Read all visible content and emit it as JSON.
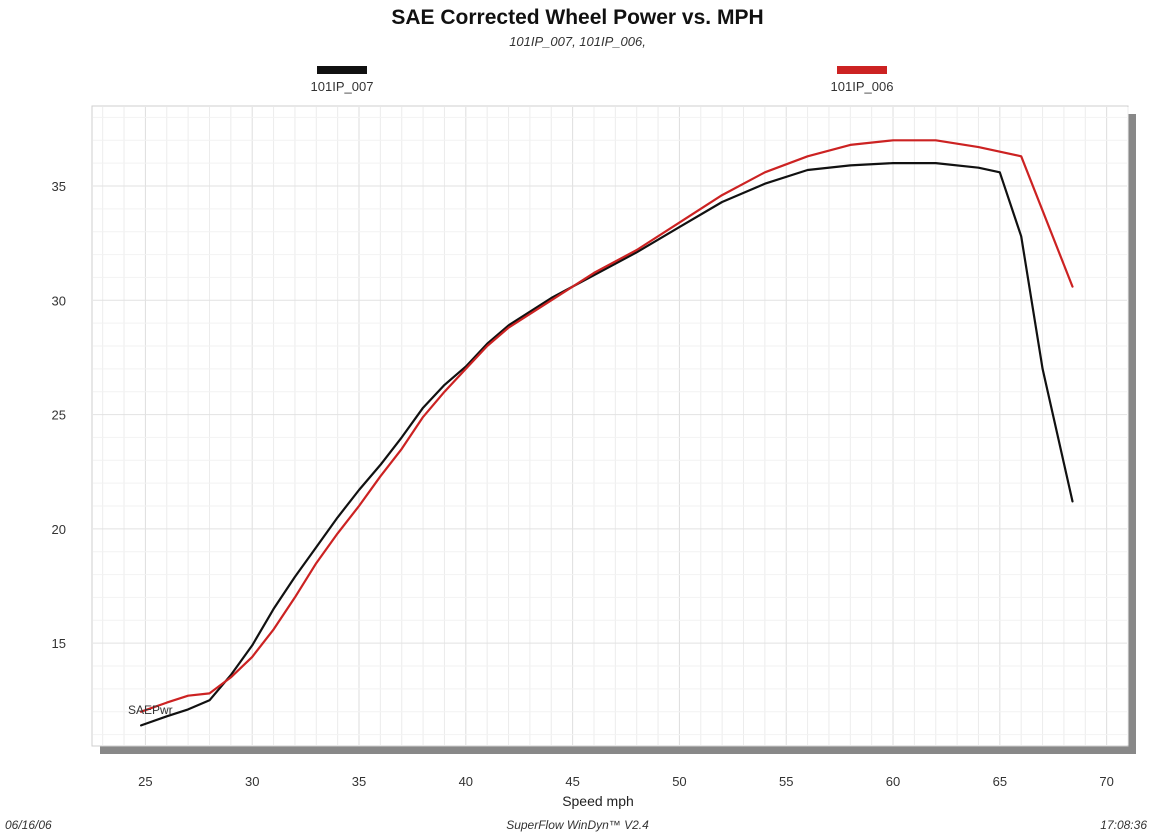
{
  "chart_data": {
    "type": "line",
    "title": "SAE Corrected Wheel Power vs. MPH",
    "subtitle": "101IP_007, 101IP_006,",
    "xlabel": "Speed   mph",
    "ylabel": "",
    "xlim": [
      22.5,
      71
    ],
    "ylim": [
      10.5,
      38.5
    ],
    "x_ticks": [
      25,
      30,
      35,
      40,
      45,
      50,
      55,
      60,
      65,
      70
    ],
    "y_ticks": [
      15,
      20,
      25,
      30,
      35
    ],
    "grid": true,
    "legend_position": "top",
    "series_axis_label": "SAEPwr",
    "series": [
      {
        "name": "101IP_007",
        "color": "#111111",
        "points": [
          [
            24.8,
            11.4
          ],
          [
            26,
            11.8
          ],
          [
            27,
            12.1
          ],
          [
            28,
            12.5
          ],
          [
            29,
            13.6
          ],
          [
            30,
            14.9
          ],
          [
            31,
            16.5
          ],
          [
            32,
            17.9
          ],
          [
            33,
            19.2
          ],
          [
            34,
            20.5
          ],
          [
            35,
            21.7
          ],
          [
            36,
            22.8
          ],
          [
            37,
            24.0
          ],
          [
            38,
            25.3
          ],
          [
            39,
            26.3
          ],
          [
            40,
            27.1
          ],
          [
            41,
            28.1
          ],
          [
            42,
            28.9
          ],
          [
            44,
            30.1
          ],
          [
            46,
            31.1
          ],
          [
            48,
            32.1
          ],
          [
            50,
            33.2
          ],
          [
            52,
            34.3
          ],
          [
            54,
            35.1
          ],
          [
            56,
            35.7
          ],
          [
            58,
            35.9
          ],
          [
            60,
            36.0
          ],
          [
            62,
            36.0
          ],
          [
            64,
            35.8
          ],
          [
            65,
            35.6
          ],
          [
            66,
            32.8
          ],
          [
            67,
            27.0
          ],
          [
            68.4,
            21.2
          ]
        ]
      },
      {
        "name": "101IP_006",
        "color": "#cc2222",
        "points": [
          [
            24.8,
            12.0
          ],
          [
            26,
            12.4
          ],
          [
            27,
            12.7
          ],
          [
            28,
            12.8
          ],
          [
            29,
            13.5
          ],
          [
            30,
            14.4
          ],
          [
            31,
            15.6
          ],
          [
            32,
            17.0
          ],
          [
            33,
            18.5
          ],
          [
            34,
            19.8
          ],
          [
            35,
            21.0
          ],
          [
            36,
            22.3
          ],
          [
            37,
            23.5
          ],
          [
            38,
            24.9
          ],
          [
            39,
            26.0
          ],
          [
            40,
            27.0
          ],
          [
            41,
            28.0
          ],
          [
            42,
            28.8
          ],
          [
            44,
            30.0
          ],
          [
            46,
            31.2
          ],
          [
            48,
            32.2
          ],
          [
            50,
            33.4
          ],
          [
            52,
            34.6
          ],
          [
            54,
            35.6
          ],
          [
            56,
            36.3
          ],
          [
            58,
            36.8
          ],
          [
            60,
            37.0
          ],
          [
            62,
            37.0
          ],
          [
            64,
            36.7
          ],
          [
            66,
            36.3
          ],
          [
            68.4,
            30.6
          ]
        ]
      }
    ]
  },
  "footer": {
    "date": "06/16/06",
    "software": "SuperFlow WinDyn™ V2.4",
    "time": "17:08:36"
  }
}
